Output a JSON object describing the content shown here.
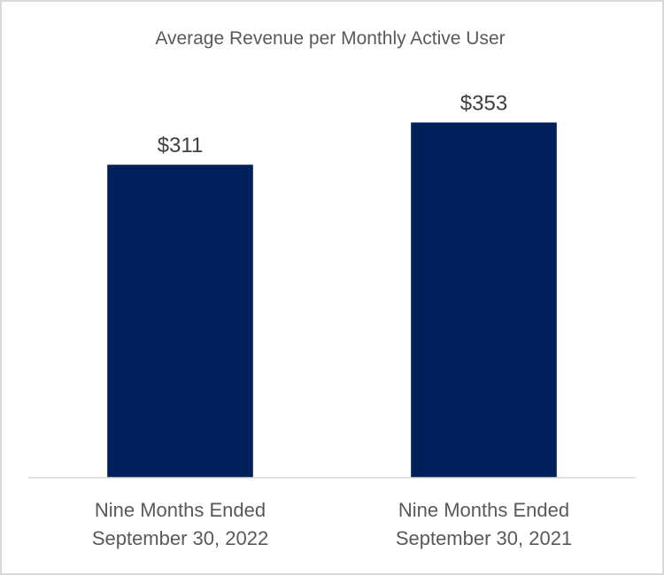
{
  "chart_data": {
    "type": "bar",
    "title": "Average Revenue per Monthly Active User",
    "categories": [
      [
        "Nine Months Ended",
        "September 30, 2022"
      ],
      [
        "Nine Months Ended",
        "September 30, 2021"
      ]
    ],
    "values": [
      311,
      353
    ],
    "data_labels": [
      "$311",
      "$353"
    ],
    "xlabel": "",
    "ylabel": "",
    "ylim": [
      0,
      400
    ],
    "grid": false,
    "legend": "none",
    "colors": {
      "bar": "#00205b",
      "axis": "#d9d9d9",
      "border": "#d9d9d9"
    }
  }
}
